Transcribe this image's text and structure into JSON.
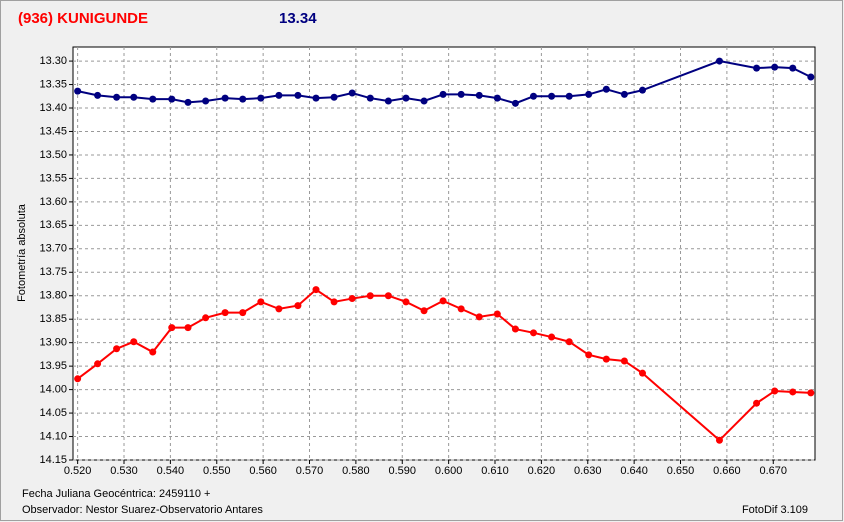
{
  "chart_data": {
    "type": "line",
    "title": "(936) KUNIGUNDE",
    "subtitle": "13.34",
    "y_label": "Fotometría absoluta",
    "x_label": "Fecha Juliana Geocéntrica: 2459110 +",
    "observer": "Observador: Nestor Suarez-Observatorio Antares",
    "software": "FotoDif 3.109",
    "inverted_y": true,
    "grid": true,
    "x": [
      0.52,
      0.5243,
      0.5284,
      0.5321,
      0.5362,
      0.5403,
      0.5438,
      0.5476,
      0.5518,
      0.5556,
      0.5595,
      0.5634,
      0.5675,
      0.5714,
      0.5753,
      0.5792,
      0.5831,
      0.587,
      0.5908,
      0.5947,
      0.5988,
      0.6027,
      0.6066,
      0.6105,
      0.6144,
      0.6183,
      0.6222,
      0.626,
      0.6302,
      0.634,
      0.6379,
      0.6418,
      0.6584,
      0.6664,
      0.6703,
      0.6742,
      0.6781
    ],
    "series": [
      {
        "color": "#000080",
        "values": [
          13.364,
          13.373,
          13.377,
          13.377,
          13.381,
          13.381,
          13.388,
          13.385,
          13.379,
          13.381,
          13.379,
          13.373,
          13.373,
          13.379,
          13.377,
          13.368,
          13.379,
          13.385,
          13.379,
          13.385,
          13.371,
          13.371,
          13.373,
          13.379,
          13.39,
          13.375,
          13.375,
          13.375,
          13.371,
          13.36,
          13.371,
          13.362,
          13.3,
          13.315,
          13.313,
          13.315,
          13.334
        ]
      },
      {
        "color": "#ff0000",
        "values": [
          13.977,
          13.945,
          13.913,
          13.898,
          13.92,
          13.868,
          13.868,
          13.847,
          13.836,
          13.836,
          13.813,
          13.828,
          13.821,
          13.787,
          13.813,
          13.806,
          13.8,
          13.8,
          13.813,
          13.832,
          13.811,
          13.828,
          13.845,
          13.839,
          13.871,
          13.879,
          13.888,
          13.898,
          13.926,
          13.935,
          13.939,
          13.965,
          14.108,
          14.029,
          14.003,
          14.005,
          14.007
        ]
      }
    ],
    "xlim": [
      0.519,
      0.679
    ],
    "ylim": [
      14.15,
      13.27
    ],
    "xticks": [
      {
        "value": 0.52,
        "label": "0.520"
      },
      {
        "value": 0.53,
        "label": "0.530"
      },
      {
        "value": 0.54,
        "label": "0.540"
      },
      {
        "value": 0.55,
        "label": "0.550"
      },
      {
        "value": 0.56,
        "label": "0.560"
      },
      {
        "value": 0.57,
        "label": "0.570"
      },
      {
        "value": 0.58,
        "label": "0.580"
      },
      {
        "value": 0.59,
        "label": "0.590"
      },
      {
        "value": 0.6,
        "label": "0.600"
      },
      {
        "value": 0.61,
        "label": "0.610"
      },
      {
        "value": 0.62,
        "label": "0.620"
      },
      {
        "value": 0.63,
        "label": "0.630"
      },
      {
        "value": 0.64,
        "label": "0.640"
      },
      {
        "value": 0.65,
        "label": "0.650"
      },
      {
        "value": 0.66,
        "label": "0.660"
      },
      {
        "value": 0.67,
        "label": "0.670"
      }
    ],
    "yticks": [
      {
        "value": 13.3,
        "label": "13.30"
      },
      13.35,
      {
        "value": 13.4,
        "label": "13.40"
      },
      13.45,
      {
        "value": 13.5,
        "label": "13.50"
      },
      13.55,
      {
        "value": 13.6,
        "label": "13.60"
      },
      13.65,
      {
        "value": 13.7,
        "label": "13.70"
      },
      13.75,
      {
        "value": 13.8,
        "label": "13.80"
      },
      13.85,
      {
        "value": 13.9,
        "label": "13.90"
      },
      13.95,
      {
        "value": 14.0,
        "label": "14.00"
      },
      14.05,
      {
        "value": 14.1,
        "label": "14.10"
      },
      14.15
    ]
  }
}
